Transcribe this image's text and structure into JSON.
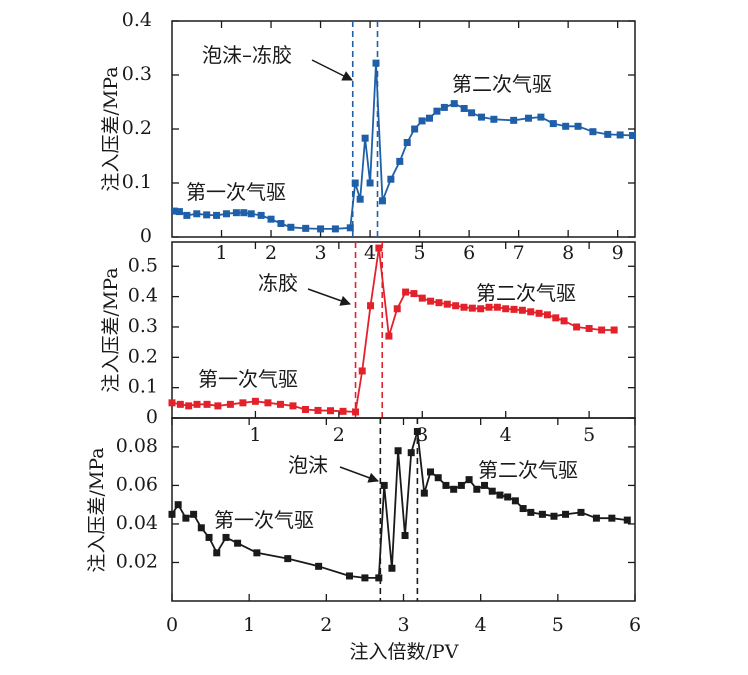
{
  "chart_data": [
    {
      "type": "line",
      "panel": "top",
      "color": "#1f5fa8",
      "ylabel": "注入压差/MPa",
      "xlim": [
        0,
        9.35
      ],
      "ylim": [
        0,
        0.4
      ],
      "xticks": [
        1,
        2,
        3,
        4,
        5,
        6,
        7,
        8,
        9
      ],
      "xtick_labels": [
        "1",
        "2",
        "3",
        "4",
        "5",
        "6",
        "7",
        "8",
        "9"
      ],
      "yticks": [
        0,
        0.1,
        0.2,
        0.3,
        0.4
      ],
      "ytick_labels": [
        "0",
        "0.1",
        "0.2",
        "0.3",
        "0.4"
      ],
      "vlines": [
        3.65,
        4.15
      ],
      "series": [
        {
          "x": [
            0.05,
            0.15,
            0.3,
            0.5,
            0.7,
            0.9,
            1.1,
            1.3,
            1.45,
            1.6,
            1.8,
            2.0,
            2.2,
            2.4,
            2.7,
            3.0,
            3.3,
            3.6,
            3.7,
            3.8,
            3.9,
            4.0,
            4.12,
            4.25,
            4.42,
            4.6,
            4.75,
            4.9,
            5.05,
            5.2,
            5.35,
            5.5,
            5.7,
            5.9,
            6.05,
            6.25,
            6.5,
            6.9,
            7.2,
            7.45,
            7.7,
            7.95,
            8.2,
            8.5,
            8.8,
            9.05,
            9.3
          ],
          "y": [
            0.048,
            0.047,
            0.04,
            0.043,
            0.041,
            0.04,
            0.043,
            0.045,
            0.045,
            0.043,
            0.04,
            0.033,
            0.025,
            0.018,
            0.016,
            0.015,
            0.015,
            0.017,
            0.1,
            0.07,
            0.183,
            0.1,
            0.322,
            0.067,
            0.107,
            0.14,
            0.175,
            0.2,
            0.215,
            0.22,
            0.233,
            0.24,
            0.247,
            0.238,
            0.23,
            0.222,
            0.218,
            0.216,
            0.22,
            0.222,
            0.21,
            0.205,
            0.205,
            0.195,
            0.19,
            0.189,
            0.188
          ]
        }
      ],
      "annotations": [
        "泡沫–冻胶",
        "第二次气驱",
        "第一次气驱"
      ]
    },
    {
      "type": "line",
      "panel": "middle",
      "color": "#e3212b",
      "ylabel": "注入压差/MPa",
      "xlim": [
        0,
        5.55
      ],
      "ylim": [
        0,
        0.58
      ],
      "xticks": [
        1,
        2,
        3,
        4,
        5
      ],
      "xtick_labels": [
        "1",
        "2",
        "3",
        "4",
        "5"
      ],
      "yticks": [
        0,
        0.1,
        0.2,
        0.3,
        0.4,
        0.5
      ],
      "ytick_labels": [
        "0",
        "0.1",
        "0.2",
        "0.3",
        "0.4",
        "0.5"
      ],
      "vlines": [
        2.2,
        2.52
      ],
      "series": [
        {
          "x": [
            0.0,
            0.1,
            0.2,
            0.3,
            0.42,
            0.55,
            0.7,
            0.85,
            1.0,
            1.15,
            1.3,
            1.45,
            1.6,
            1.75,
            1.9,
            2.05,
            2.2,
            2.28,
            2.38,
            2.48,
            2.6,
            2.7,
            2.8,
            2.9,
            3.0,
            3.1,
            3.2,
            3.3,
            3.4,
            3.5,
            3.6,
            3.7,
            3.8,
            3.9,
            4.0,
            4.1,
            4.2,
            4.3,
            4.4,
            4.5,
            4.6,
            4.7,
            4.85,
            5.0,
            5.15,
            5.3
          ],
          "y": [
            0.05,
            0.045,
            0.04,
            0.045,
            0.045,
            0.04,
            0.045,
            0.05,
            0.055,
            0.05,
            0.045,
            0.04,
            0.028,
            0.025,
            0.024,
            0.022,
            0.02,
            0.155,
            0.37,
            0.56,
            0.27,
            0.36,
            0.415,
            0.41,
            0.395,
            0.385,
            0.38,
            0.375,
            0.37,
            0.365,
            0.362,
            0.36,
            0.365,
            0.365,
            0.36,
            0.358,
            0.355,
            0.35,
            0.345,
            0.34,
            0.33,
            0.32,
            0.3,
            0.295,
            0.29,
            0.29
          ]
        }
      ],
      "annotations": [
        "冻胶",
        "第二次气驱",
        "第一次气驱"
      ]
    },
    {
      "type": "line",
      "panel": "bottom",
      "color": "#1a1a1a",
      "xlabel": "注入倍数/PV",
      "ylabel": "注入压差/MPa",
      "xlim": [
        0,
        6
      ],
      "ylim": [
        0,
        0.095
      ],
      "xticks": [
        0,
        1,
        2,
        3,
        4,
        5,
        6
      ],
      "xtick_labels": [
        "0",
        "1",
        "2",
        "3",
        "4",
        "5",
        "6"
      ],
      "yticks": [
        0.02,
        0.04,
        0.06,
        0.08
      ],
      "ytick_labels": [
        "0.02",
        "0.04",
        "0.06",
        "0.08"
      ],
      "vlines": [
        2.7,
        3.18
      ],
      "series": [
        {
          "x": [
            0.0,
            0.08,
            0.18,
            0.28,
            0.38,
            0.48,
            0.58,
            0.7,
            0.85,
            1.1,
            1.5,
            1.9,
            2.3,
            2.5,
            2.68,
            2.75,
            2.85,
            2.93,
            3.02,
            3.1,
            3.18,
            3.27,
            3.35,
            3.45,
            3.55,
            3.65,
            3.75,
            3.85,
            3.95,
            4.05,
            4.15,
            4.25,
            4.35,
            4.45,
            4.55,
            4.65,
            4.8,
            4.95,
            5.1,
            5.3,
            5.5,
            5.7,
            5.9
          ],
          "y": [
            0.045,
            0.05,
            0.043,
            0.045,
            0.038,
            0.033,
            0.025,
            0.033,
            0.03,
            0.025,
            0.022,
            0.018,
            0.013,
            0.012,
            0.012,
            0.06,
            0.017,
            0.078,
            0.034,
            0.077,
            0.088,
            0.056,
            0.067,
            0.064,
            0.06,
            0.058,
            0.06,
            0.063,
            0.058,
            0.06,
            0.057,
            0.055,
            0.054,
            0.052,
            0.048,
            0.046,
            0.045,
            0.044,
            0.045,
            0.046,
            0.043,
            0.043,
            0.042
          ]
        }
      ],
      "annotations": [
        "泡沫",
        "第二次气驱",
        "第一次气驱"
      ]
    }
  ]
}
